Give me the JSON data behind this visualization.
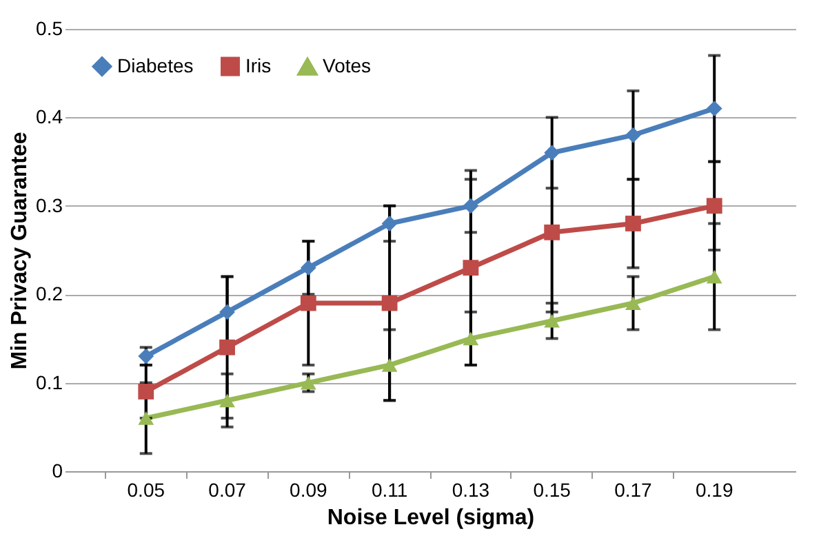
{
  "chart_data": {
    "type": "line",
    "xlabel": "Noise Level (sigma)",
    "ylabel": "Min Privacy Guarantee",
    "categories": [
      "0.05",
      "0.07",
      "0.09",
      "0.11",
      "0.13",
      "0.15",
      "0.17",
      "0.19"
    ],
    "ylim": [
      0,
      0.5
    ],
    "yticks": [
      0,
      0.1,
      0.2,
      0.3,
      0.4,
      0.5
    ],
    "grid": "y",
    "legend": "top left",
    "series": [
      {
        "name": "Diabetes",
        "color": "#4a7ebb",
        "marker": "diamond",
        "values": [
          0.13,
          0.18,
          0.23,
          0.28,
          0.3,
          0.36,
          0.38,
          0.41
        ],
        "errors": [
          0.01,
          0.04,
          0.03,
          0.02,
          0.03,
          0.04,
          0.05,
          0.06
        ]
      },
      {
        "name": "Iris",
        "color": "#be4b48",
        "marker": "square",
        "values": [
          0.09,
          0.14,
          0.19,
          0.19,
          0.23,
          0.27,
          0.28,
          0.3
        ],
        "errors": [
          0.03,
          0.08,
          0.07,
          0.11,
          0.11,
          0.09,
          0.05,
          0.05
        ]
      },
      {
        "name": "Votes",
        "color": "#98b954",
        "marker": "triangle",
        "values": [
          0.06,
          0.08,
          0.1,
          0.12,
          0.15,
          0.17,
          0.19,
          0.22
        ],
        "errors": [
          0.04,
          0.03,
          0.01,
          0.04,
          0.03,
          0.02,
          0.03,
          0.06
        ]
      }
    ]
  }
}
